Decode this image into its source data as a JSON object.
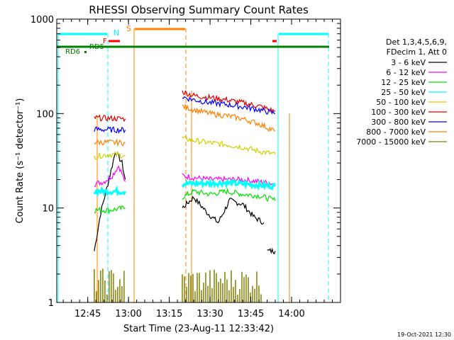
{
  "chart_data": {
    "type": "line",
    "title": "RHESSI Observing Summary Count Rates",
    "xlabel": "Start Time (23-Aug-11 12:33:42)",
    "ylabel": "Count Rate (s⁻¹ detector⁻¹)",
    "yscale": "log",
    "ylim": [
      1,
      1000
    ],
    "xlim_minutes": [
      12.56,
      14.3
    ],
    "x_ticks": [
      "12:45",
      "13:00",
      "13:15",
      "13:30",
      "13:45",
      "14:00"
    ],
    "y_ticks": [
      "1",
      "10",
      "100",
      "1000"
    ],
    "legend_header": [
      "Det 1,3,4,5,6,9,",
      "FDecim 1, Att 0"
    ],
    "legend_position": "right",
    "footer": "19-Oct-2021 12:30",
    "series": [
      {
        "name": "3 - 6 keV",
        "color": "#000000",
        "segments": [
          {
            "x": [
              12.79,
              12.83,
              12.88,
              12.92,
              12.96,
              12.98
            ],
            "y": [
              3.5,
              9,
              20,
              40,
              30,
              20
            ]
          },
          {
            "x": [
              13.33,
              13.4,
              13.48,
              13.55,
              13.62,
              13.7,
              13.77,
              13.83
            ],
            "y": [
              10,
              13,
              9,
              7,
              12,
              11,
              8,
              7
            ]
          },
          {
            "x": [
              13.85,
              13.9
            ],
            "y": [
              3.5,
              3.5
            ]
          }
        ]
      },
      {
        "name": "6 - 12 keV",
        "color": "#ff00ff",
        "segments": [
          {
            "x": [
              12.79,
              12.85,
              12.9,
              12.94,
              12.98
            ],
            "y": [
              18,
              19,
              22,
              28,
              19
            ]
          },
          {
            "x": [
              13.33,
              13.4,
              13.5,
              13.6,
              13.7,
              13.8,
              13.9
            ],
            "y": [
              22,
              21,
              20,
              20,
              20,
              19,
              18
            ]
          }
        ]
      },
      {
        "name": "12 - 25 keV",
        "color": "#00e000",
        "segments": [
          {
            "x": [
              12.79,
              12.88,
              12.98
            ],
            "y": [
              9.5,
              9.5,
              10
            ]
          },
          {
            "x": [
              13.33,
              13.4,
              13.5,
              13.6,
              13.7,
              13.8,
              13.9
            ],
            "y": [
              13,
              15,
              14,
              15,
              14,
              13.5,
              12
            ]
          }
        ]
      },
      {
        "name": "25 - 50 keV",
        "color": "#00ffff",
        "segments": [
          {
            "x": [
              12.79,
              12.98
            ],
            "y": [
              15,
              15
            ]
          },
          {
            "x": [
              13.33,
              13.6,
              13.9
            ],
            "y": [
              18,
              18.5,
              17
            ]
          }
        ]
      },
      {
        "name": "50 - 100 keV",
        "color": "#d0d000",
        "segments": [
          {
            "x": [
              12.79,
              12.88,
              12.98
            ],
            "y": [
              35,
              37,
              36
            ]
          },
          {
            "x": [
              13.33,
              13.4,
              13.5,
              13.6,
              13.7,
              13.8,
              13.9
            ],
            "y": [
              55,
              52,
              49,
              47,
              44,
              40,
              37
            ]
          }
        ]
      },
      {
        "name": "100 - 300 keV",
        "color": "#e00000",
        "segments": [
          {
            "x": [
              12.79,
              12.98
            ],
            "y": [
              90,
              88
            ]
          },
          {
            "x": [
              13.33,
              13.4,
              13.5,
              13.6,
              13.7,
              13.8,
              13.9
            ],
            "y": [
              170,
              155,
              148,
              140,
              130,
              120,
              105
            ]
          }
        ]
      },
      {
        "name": "300 - 800 keV",
        "color": "#0000ff",
        "segments": [
          {
            "x": [
              12.79,
              12.98
            ],
            "y": [
              68,
              67
            ]
          },
          {
            "x": [
              13.33,
              13.4,
              13.5,
              13.6,
              13.7,
              13.8,
              13.9
            ],
            "y": [
              150,
              140,
              130,
              125,
              118,
              110,
              100
            ]
          }
        ]
      },
      {
        "name": "800 - 7000 keV",
        "color": "#ff8000",
        "segments": [
          {
            "x": [
              12.79,
              12.98
            ],
            "y": [
              50,
              49
            ]
          },
          {
            "x": [
              13.33,
              13.4,
              13.5,
              13.6,
              13.7,
              13.8,
              13.9
            ],
            "y": [
              120,
              110,
              100,
              95,
              88,
              78,
              65
            ]
          }
        ]
      },
      {
        "name": "7000 - 15000 keV",
        "color": "#808000",
        "segments": [
          {
            "x": [
              12.79,
              12.98
            ],
            "y": [
              1.9,
              1.9
            ]
          },
          {
            "x": [
              13.33,
              13.5,
              13.62,
              13.82
            ],
            "y": [
              1.3,
              2,
              1.9,
              1.9
            ]
          }
        ]
      }
    ],
    "annotations": [
      {
        "label": "N",
        "color": "#00ffff"
      },
      {
        "label": "S",
        "color": "#ff8000"
      },
      {
        "label": "F",
        "color": "#ff0000"
      },
      {
        "label": "RD5",
        "color": "#008000"
      },
      {
        "label": "RD6",
        "color": "#008000"
      }
    ]
  }
}
